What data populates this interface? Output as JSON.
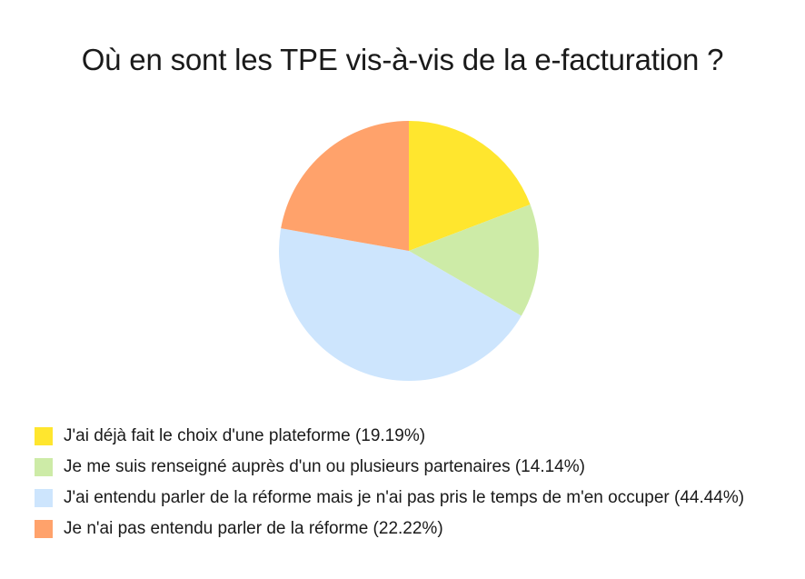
{
  "chart_data": {
    "type": "pie",
    "title": "Où en sont les TPE vis-à-vis de la e-facturation ?",
    "legend_position": "bottom-left",
    "slices": [
      {
        "label": "J'ai déjà fait le choix d'une plateforme (19.19%)",
        "value": 19.19,
        "color": "#ffe62e"
      },
      {
        "label": "Je me suis renseigné auprès d'un ou plusieurs partenaires (14.14%)",
        "value": 14.14,
        "color": "#cdeba7"
      },
      {
        "label": "J'ai entendu parler de la réforme mais je n'ai pas pris le temps de m'en occuper (44.44%)",
        "value": 44.44,
        "color": "#cde5fd"
      },
      {
        "label": "Je n'ai pas entendu parler de la réforme (22.22%)",
        "value": 22.22,
        "color": "#ffa26b"
      }
    ]
  }
}
